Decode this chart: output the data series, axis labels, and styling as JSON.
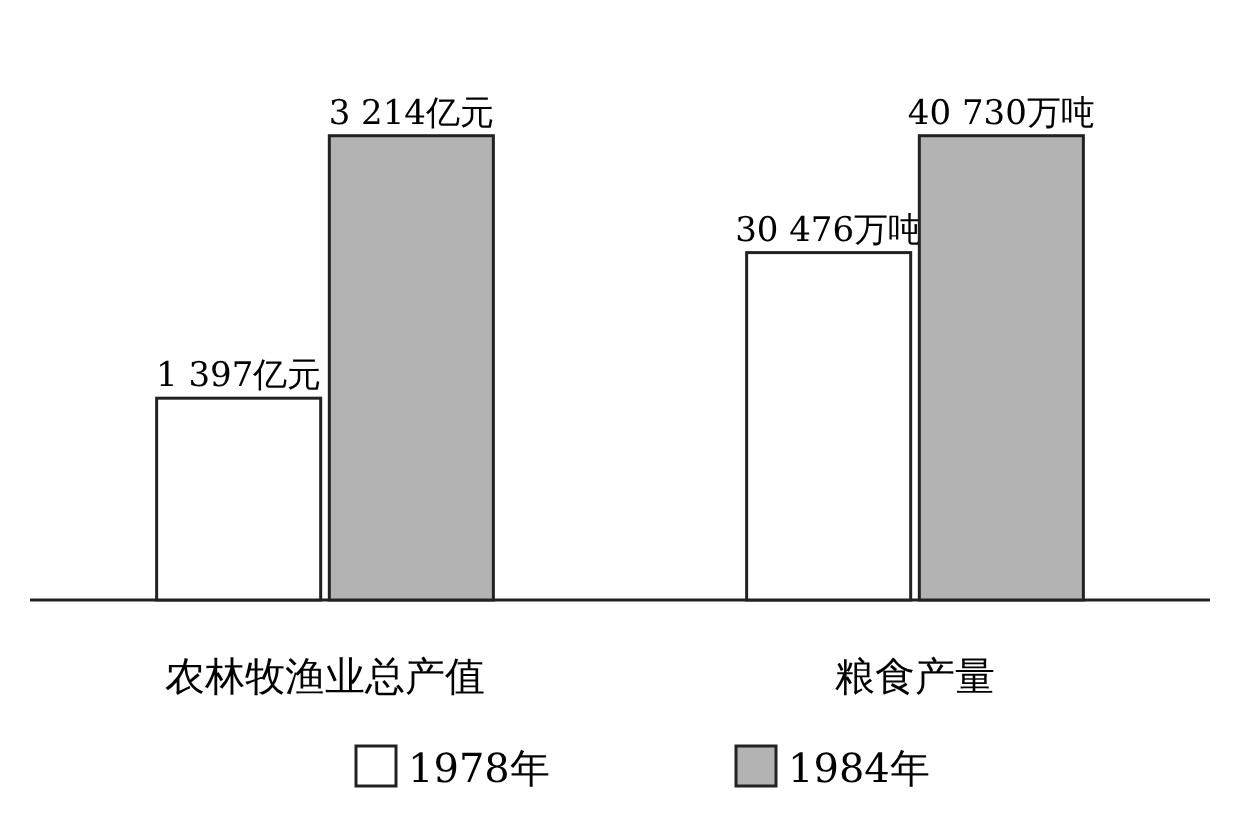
{
  "chart_data": [
    {
      "type": "bar",
      "xlabel": "农林牧渔业总产值",
      "categories": [
        null
      ],
      "series": [
        {
          "name": "1978年",
          "color": "#ffffff",
          "values": [
            1397
          ],
          "value_labels": [
            "1 397亿元"
          ]
        },
        {
          "name": "1984年",
          "color": "#b3b3b3",
          "values": [
            3214
          ],
          "value_labels": [
            "3 214亿元"
          ]
        }
      ],
      "legend": "bottom"
    },
    {
      "type": "bar",
      "xlabel": "粮食产量",
      "categories": [
        null
      ],
      "series": [
        {
          "color": "#ffffff",
          "values": [
            30476
          ],
          "value_labels": [
            "30 476万吨"
          ]
        },
        {
          "color": "#b3b3b3",
          "values": [
            40730
          ],
          "value_labels": [
            "40 730万吨"
          ]
        }
      ]
    }
  ]
}
